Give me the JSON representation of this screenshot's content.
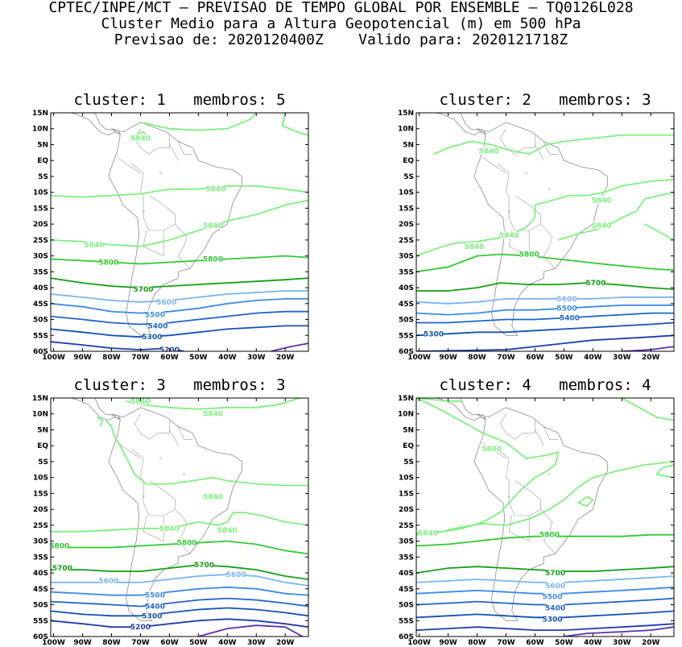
{
  "header": {
    "line1": "CPTEC/INPE/MCT – PREVISAO DE TEMPO GLOBAL POR ENSEMBLE – TQ0126L028",
    "line2": "Cluster Medio para a Altura Geopotencial (m) em 500 hPa",
    "line3": "Previsao de: 2020120400Z    Valido para: 2020121718Z"
  },
  "axes": {
    "lat_labels": [
      "15N",
      "10N",
      "5N",
      "EQ",
      "5S",
      "10S",
      "15S",
      "20S",
      "25S",
      "30S",
      "35S",
      "40S",
      "45S",
      "50S",
      "55S",
      "60S"
    ],
    "lon_labels": [
      "100W",
      "90W",
      "80W",
      "70W",
      "60W",
      "50W",
      "40W",
      "30W",
      "20W"
    ]
  },
  "contour_colors": {
    "5840": "#7ef07e",
    "5800": "#32c832",
    "5700": "#14a014",
    "5600": "#78b4f0",
    "5500": "#3c8ce6",
    "5400": "#2064c8",
    "5300": "#1450b4",
    "5200": "#1e3caa",
    "5100": "#5a32b4"
  },
  "panels": [
    {
      "title": "cluster: 1   membros: 5",
      "labels": [
        {
          "text": "5840",
          "lon": -70,
          "lat": 7
        },
        {
          "text": "5840",
          "lon": -44,
          "lat": -9
        },
        {
          "text": "5840",
          "lon": -45,
          "lat": -20.5
        },
        {
          "text": "5840",
          "lon": -86,
          "lat": -26.5
        },
        {
          "text": "5800",
          "lon": -81,
          "lat": -32
        },
        {
          "text": "5800",
          "lon": -45,
          "lat": -31
        },
        {
          "text": "5700",
          "lon": -69,
          "lat": -40.5
        },
        {
          "text": "5600",
          "lon": -61,
          "lat": -44.5
        },
        {
          "text": "5500",
          "lon": -65,
          "lat": -48.5
        },
        {
          "text": "5400",
          "lon": -64,
          "lat": -52
        },
        {
          "text": "5300",
          "lon": -66,
          "lat": -55.5
        },
        {
          "text": "5200",
          "lon": -60,
          "lat": -59.5
        }
      ]
    },
    {
      "title": "cluster: 2   membros: 3",
      "labels": [
        {
          "text": "5840",
          "lon": -76,
          "lat": 3
        },
        {
          "text": "5840",
          "lon": -37,
          "lat": -12.5
        },
        {
          "text": "5840",
          "lon": -37,
          "lat": -20.5
        },
        {
          "text": "5840",
          "lon": -69,
          "lat": -23.5
        },
        {
          "text": "5840",
          "lon": -81,
          "lat": -27
        },
        {
          "text": "5800",
          "lon": -62,
          "lat": -29.5
        },
        {
          "text": "5700",
          "lon": -39,
          "lat": -38.5
        },
        {
          "text": "5600",
          "lon": -49,
          "lat": -43.5
        },
        {
          "text": "5500",
          "lon": -49,
          "lat": -46.5
        },
        {
          "text": "5400",
          "lon": -48,
          "lat": -49.5
        },
        {
          "text": "5300",
          "lon": -95,
          "lat": -54.5
        }
      ]
    },
    {
      "title": "cluster: 3   membros: 3",
      "labels": [
        {
          "text": "5840",
          "lon": -70,
          "lat": 14
        },
        {
          "text": "5840",
          "lon": -45,
          "lat": 10
        },
        {
          "text": "5840",
          "lon": -45,
          "lat": -16
        },
        {
          "text": "5840",
          "lon": -60,
          "lat": -26
        },
        {
          "text": "5840",
          "lon": -40,
          "lat": -26.5
        },
        {
          "text": "5800",
          "lon": -98,
          "lat": -31.5
        },
        {
          "text": "5800",
          "lon": -54,
          "lat": -30.5
        },
        {
          "text": "5700",
          "lon": -97,
          "lat": -38.5
        },
        {
          "text": "5700",
          "lon": -48,
          "lat": -37.5
        },
        {
          "text": "5600",
          "lon": -81,
          "lat": -42.5
        },
        {
          "text": "5600",
          "lon": -37,
          "lat": -40.5
        },
        {
          "text": "5500",
          "lon": -65,
          "lat": -47
        },
        {
          "text": "5400",
          "lon": -65,
          "lat": -50.5
        },
        {
          "text": "5300",
          "lon": -66,
          "lat": -53.5
        },
        {
          "text": "5200",
          "lon": -70,
          "lat": -57
        }
      ]
    },
    {
      "title": "cluster: 4   membros: 4",
      "labels": [
        {
          "text": "5840",
          "lon": -75,
          "lat": -1
        },
        {
          "text": "5840",
          "lon": -97,
          "lat": -27.5
        },
        {
          "text": "5800",
          "lon": -55,
          "lat": -28
        },
        {
          "text": "5700",
          "lon": -53,
          "lat": -40
        },
        {
          "text": "5600",
          "lon": -53,
          "lat": -44
        },
        {
          "text": "5500",
          "lon": -54,
          "lat": -47.5
        },
        {
          "text": "5400",
          "lon": -53,
          "lat": -51
        },
        {
          "text": "5300",
          "lon": -54,
          "lat": -54.5
        }
      ]
    }
  ]
}
